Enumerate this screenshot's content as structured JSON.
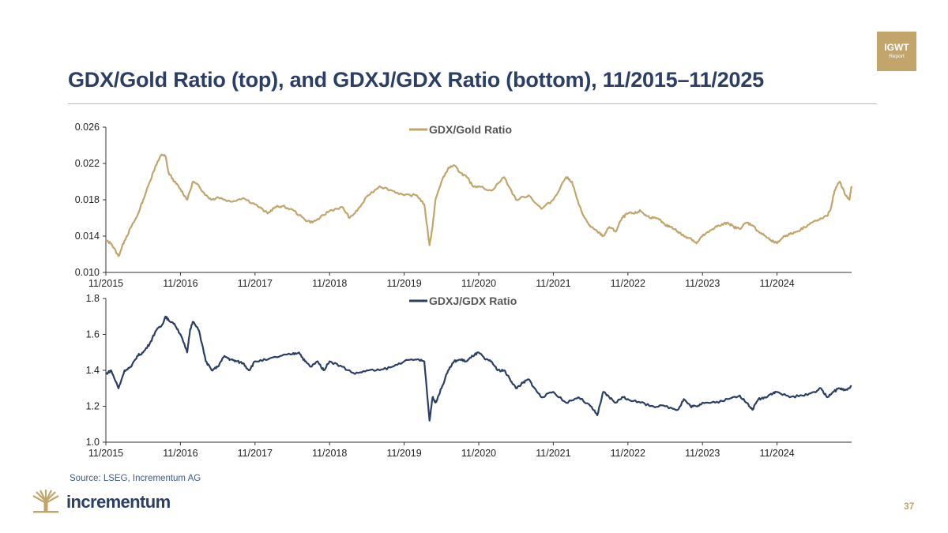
{
  "slide": {
    "title": "GDX/Gold Ratio (top), and GDXJ/GDX Ratio (bottom), 11/2015–11/2025",
    "badge_line1": "IGWT",
    "badge_line2": "Report",
    "source": "Source: LSEG, Incrementum AG",
    "brand": "incrementum",
    "page_number": "37"
  },
  "colors": {
    "gold": "#c2a56a",
    "navy": "#2b3f66",
    "axis": "#333333"
  },
  "chart_data": [
    {
      "type": "line",
      "title": "GDX/Gold Ratio",
      "legend": "GDX/Gold Ratio",
      "legend_position": "top-center",
      "color": "#c2a56a",
      "xlabel": "",
      "ylabel": "",
      "xlim": [
        2015.83,
        2025.83
      ],
      "ylim": [
        0.01,
        0.026
      ],
      "yticks": [
        "0.010",
        "0.014",
        "0.018",
        "0.022",
        "0.026"
      ],
      "xticks": [
        "11/2015",
        "11/2016",
        "11/2017",
        "11/2018",
        "11/2019",
        "11/2020",
        "11/2021",
        "11/2022",
        "11/2023",
        "11/2024"
      ],
      "grid": false,
      "series": [
        {
          "name": "GDX/Gold Ratio",
          "x": [
            2015.83,
            2015.9,
            2016.0,
            2016.08,
            2016.17,
            2016.25,
            2016.33,
            2016.42,
            2016.5,
            2016.58,
            2016.63,
            2016.67,
            2016.75,
            2016.83,
            2016.92,
            2017.0,
            2017.08,
            2017.17,
            2017.25,
            2017.33,
            2017.5,
            2017.67,
            2017.83,
            2018.0,
            2018.1,
            2018.2,
            2018.35,
            2018.5,
            2018.6,
            2018.7,
            2018.83,
            2019.0,
            2019.1,
            2019.2,
            2019.35,
            2019.5,
            2019.67,
            2019.83,
            2020.0,
            2020.1,
            2020.17,
            2020.21,
            2020.25,
            2020.33,
            2020.42,
            2020.5,
            2020.58,
            2020.67,
            2020.75,
            2020.83,
            2021.0,
            2021.17,
            2021.33,
            2021.5,
            2021.67,
            2021.83,
            2022.0,
            2022.08,
            2022.17,
            2022.25,
            2022.33,
            2022.42,
            2022.5,
            2022.58,
            2022.67,
            2022.75,
            2022.83,
            2022.92,
            2023.0,
            2023.08,
            2023.17,
            2023.25,
            2023.33,
            2023.42,
            2023.5,
            2023.58,
            2023.67,
            2023.75,
            2023.83,
            2023.92,
            2024.0,
            2024.08,
            2024.17,
            2024.25,
            2024.33,
            2024.42,
            2024.5,
            2024.58,
            2024.67,
            2024.75,
            2024.83,
            2024.92,
            2025.0,
            2025.1,
            2025.2,
            2025.3,
            2025.4,
            2025.5,
            2025.55,
            2025.6,
            2025.67,
            2025.75,
            2025.8,
            2025.83
          ],
          "values": [
            0.0135,
            0.0132,
            0.0118,
            0.0135,
            0.015,
            0.0162,
            0.018,
            0.02,
            0.0218,
            0.023,
            0.0228,
            0.021,
            0.02,
            0.0192,
            0.018,
            0.02,
            0.0195,
            0.0185,
            0.018,
            0.0183,
            0.0178,
            0.0182,
            0.0175,
            0.0165,
            0.0172,
            0.0173,
            0.0168,
            0.0158,
            0.0155,
            0.016,
            0.0168,
            0.0172,
            0.016,
            0.0168,
            0.0185,
            0.0195,
            0.019,
            0.0185,
            0.0185,
            0.0175,
            0.013,
            0.015,
            0.018,
            0.02,
            0.0215,
            0.0218,
            0.021,
            0.0205,
            0.0195,
            0.0195,
            0.019,
            0.0205,
            0.018,
            0.0185,
            0.017,
            0.018,
            0.0205,
            0.02,
            0.0175,
            0.016,
            0.015,
            0.0145,
            0.014,
            0.015,
            0.0145,
            0.016,
            0.0165,
            0.0165,
            0.0168,
            0.0162,
            0.016,
            0.0158,
            0.0152,
            0.015,
            0.0145,
            0.014,
            0.0138,
            0.0132,
            0.014,
            0.0145,
            0.015,
            0.0152,
            0.0155,
            0.015,
            0.0148,
            0.0155,
            0.0152,
            0.0145,
            0.014,
            0.0135,
            0.0132,
            0.014,
            0.0142,
            0.0145,
            0.015,
            0.0155,
            0.0158,
            0.0162,
            0.017,
            0.019,
            0.02,
            0.0185,
            0.018,
            0.0195
          ]
        }
      ]
    },
    {
      "type": "line",
      "title": "GDXJ/GDX Ratio",
      "legend": "GDXJ/GDX Ratio",
      "legend_position": "top-center",
      "color": "#2b3f66",
      "xlabel": "",
      "ylabel": "",
      "xlim": [
        2015.83,
        2025.83
      ],
      "ylim": [
        1.0,
        1.8
      ],
      "yticks": [
        "1.0",
        "1.2",
        "1.4",
        "1.6",
        "1.8"
      ],
      "xticks": [
        "11/2015",
        "11/2016",
        "11/2017",
        "11/2018",
        "11/2019",
        "11/2020",
        "11/2021",
        "11/2022",
        "11/2023",
        "11/2024"
      ],
      "grid": false,
      "series": [
        {
          "name": "GDXJ/GDX Ratio",
          "x": [
            2015.83,
            2015.9,
            2016.0,
            2016.08,
            2016.17,
            2016.25,
            2016.33,
            2016.42,
            2016.5,
            2016.58,
            2016.63,
            2016.67,
            2016.75,
            2016.83,
            2016.92,
            2016.96,
            2017.0,
            2017.08,
            2017.17,
            2017.25,
            2017.33,
            2017.42,
            2017.5,
            2017.58,
            2017.67,
            2017.75,
            2017.83,
            2018.0,
            2018.17,
            2018.33,
            2018.42,
            2018.5,
            2018.58,
            2018.67,
            2018.75,
            2018.83,
            2019.0,
            2019.17,
            2019.33,
            2019.5,
            2019.67,
            2019.83,
            2020.0,
            2020.1,
            2020.17,
            2020.21,
            2020.25,
            2020.33,
            2020.42,
            2020.5,
            2020.58,
            2020.67,
            2020.75,
            2020.83,
            2020.92,
            2021.0,
            2021.08,
            2021.17,
            2021.25,
            2021.33,
            2021.42,
            2021.5,
            2021.58,
            2021.67,
            2021.83,
            2022.0,
            2022.17,
            2022.33,
            2022.42,
            2022.5,
            2022.58,
            2022.67,
            2022.75,
            2022.83,
            2023.0,
            2023.17,
            2023.33,
            2023.5,
            2023.58,
            2023.67,
            2023.75,
            2023.83,
            2024.0,
            2024.17,
            2024.33,
            2024.42,
            2024.5,
            2024.58,
            2024.67,
            2024.75,
            2024.83,
            2025.0,
            2025.17,
            2025.33,
            2025.42,
            2025.5,
            2025.58,
            2025.67,
            2025.75,
            2025.83
          ],
          "values": [
            1.38,
            1.4,
            1.3,
            1.4,
            1.42,
            1.48,
            1.5,
            1.55,
            1.62,
            1.65,
            1.7,
            1.68,
            1.66,
            1.6,
            1.5,
            1.63,
            1.67,
            1.62,
            1.45,
            1.4,
            1.42,
            1.48,
            1.46,
            1.45,
            1.44,
            1.4,
            1.45,
            1.46,
            1.48,
            1.49,
            1.5,
            1.45,
            1.42,
            1.45,
            1.4,
            1.45,
            1.42,
            1.38,
            1.4,
            1.4,
            1.42,
            1.45,
            1.46,
            1.45,
            1.12,
            1.25,
            1.22,
            1.3,
            1.4,
            1.45,
            1.46,
            1.45,
            1.48,
            1.5,
            1.46,
            1.45,
            1.4,
            1.4,
            1.35,
            1.3,
            1.33,
            1.35,
            1.3,
            1.25,
            1.28,
            1.22,
            1.25,
            1.2,
            1.15,
            1.28,
            1.25,
            1.22,
            1.25,
            1.24,
            1.22,
            1.2,
            1.2,
            1.18,
            1.24,
            1.2,
            1.2,
            1.22,
            1.22,
            1.24,
            1.26,
            1.22,
            1.18,
            1.24,
            1.25,
            1.27,
            1.28,
            1.25,
            1.26,
            1.28,
            1.3,
            1.25,
            1.28,
            1.3,
            1.29,
            1.31
          ]
        }
      ]
    }
  ]
}
